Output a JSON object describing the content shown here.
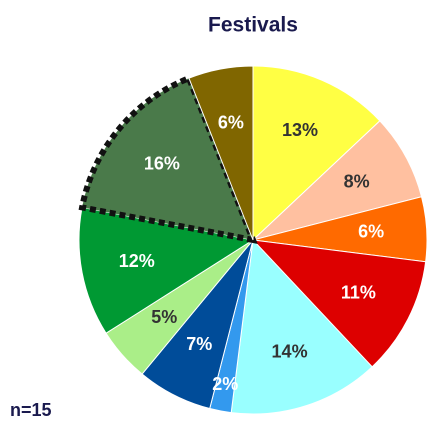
{
  "chart_data": {
    "type": "pie",
    "title": "Festivals",
    "note": "n=15",
    "values": [
      13,
      8,
      6,
      11,
      14,
      2,
      7,
      5,
      12,
      16,
      6
    ],
    "value_labels": [
      "13%",
      "8%",
      "6%",
      "11%",
      "14%",
      "2%",
      "7%",
      "5%",
      "12%",
      "16%",
      "6%"
    ],
    "colors": [
      "#ffff44",
      "#ffc0a0",
      "#ff6a00",
      "#dd0000",
      "#99ffff",
      "#3399ee",
      "#004c99",
      "#aaee88",
      "#009933",
      "#4a7a4a",
      "#806600"
    ],
    "highlight": 9
  }
}
